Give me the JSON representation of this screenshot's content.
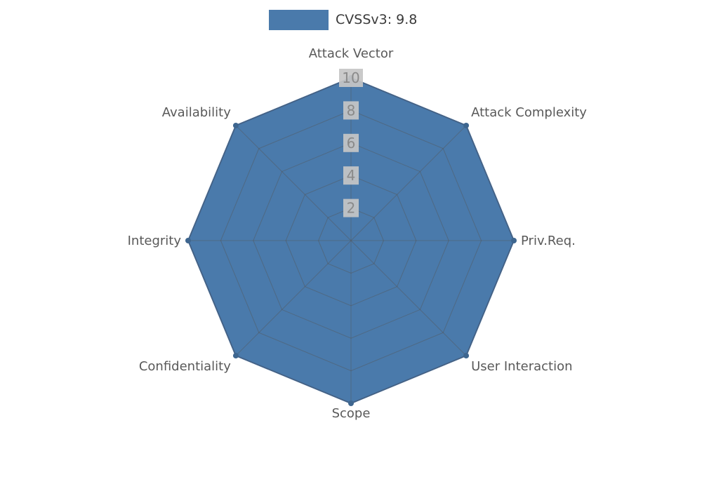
{
  "legend": {
    "label": "CVSSv3: 9.8",
    "swatch_color": "#4a7aab"
  },
  "chart_data": {
    "type": "radar",
    "title": "",
    "categories": [
      "Attack Vector",
      "Attack Complexity",
      "Priv.Req.",
      "User Interaction",
      "Scope",
      "Confidentiality",
      "Integrity",
      "Availability"
    ],
    "series": [
      {
        "name": "CVSSv3: 9.8",
        "values": [
          10,
          10,
          10,
          10,
          10,
          10,
          10,
          10
        ]
      }
    ],
    "radial_ticks": [
      2,
      4,
      6,
      8,
      10
    ],
    "radial_range": [
      0,
      10
    ],
    "grid": true,
    "legend_position": "top-center",
    "colors": {
      "fill": "#4a7aab",
      "stroke": "#40699a",
      "marker": "#3e668f",
      "grid": "#555555",
      "axis_label": "#595959",
      "tick_label": "#8a8a8a",
      "tick_label_bg": "#c6c6c6"
    }
  }
}
